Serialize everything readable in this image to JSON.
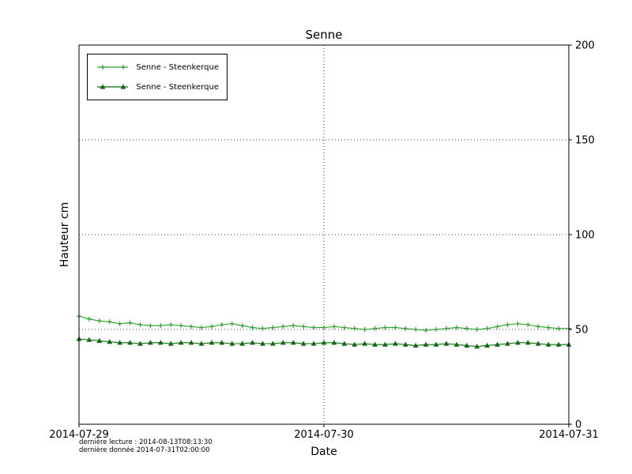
{
  "chart_data": {
    "type": "line",
    "title": "Senne",
    "xlabel": "Date",
    "ylabel": "Hauteur cm",
    "ylim": [
      0,
      200
    ],
    "yticks": [
      0,
      50,
      100,
      150,
      200
    ],
    "xlim": [
      0,
      48
    ],
    "xticks": [
      {
        "pos": 0,
        "label": "2014-07-29"
      },
      {
        "pos": 24,
        "label": "2014-07-30"
      },
      {
        "pos": 48,
        "label": "2014-07-31"
      }
    ],
    "grid": {
      "x": [
        24
      ],
      "y": [
        50,
        100,
        150
      ]
    },
    "legend_position": "upper-left",
    "series": [
      {
        "name": "Senne - Steenkerque",
        "marker": "plus",
        "color": "#2ca02c",
        "x": [
          0,
          1,
          2,
          3,
          4,
          5,
          6,
          7,
          8,
          9,
          10,
          11,
          12,
          13,
          14,
          15,
          16,
          17,
          18,
          19,
          20,
          21,
          22,
          23,
          24,
          25,
          26,
          27,
          28,
          29,
          30,
          31,
          32,
          33,
          34,
          35,
          36,
          37,
          38,
          39,
          40,
          41,
          42,
          43,
          44,
          45,
          46,
          47,
          48
        ],
        "values": [
          57,
          55.5,
          54.5,
          54,
          53,
          53.5,
          52.5,
          52,
          52,
          52.5,
          52,
          51.5,
          51,
          51.5,
          52.5,
          53,
          52,
          51,
          50.5,
          51,
          51.5,
          52,
          51.5,
          51,
          51,
          51.5,
          51,
          50.5,
          50,
          50.5,
          51,
          51,
          50.5,
          50,
          49.5,
          50,
          50.5,
          51,
          50.5,
          50,
          50.5,
          51.5,
          52.5,
          53,
          52.5,
          51.5,
          51,
          50.5,
          50.5
        ]
      },
      {
        "name": "Senne - Steenkerque",
        "marker": "triangle",
        "color": "#0e6b0e",
        "x": [
          0,
          1,
          2,
          3,
          4,
          5,
          6,
          7,
          8,
          9,
          10,
          11,
          12,
          13,
          14,
          15,
          16,
          17,
          18,
          19,
          20,
          21,
          22,
          23,
          24,
          25,
          26,
          27,
          28,
          29,
          30,
          31,
          32,
          33,
          34,
          35,
          36,
          37,
          38,
          39,
          40,
          41,
          42,
          43,
          44,
          45,
          46,
          47,
          48
        ],
        "values": [
          45,
          44.5,
          44,
          43.5,
          43,
          43,
          42.5,
          43,
          43,
          42.5,
          43,
          43,
          42.5,
          43,
          43,
          42.5,
          42.5,
          43,
          42.5,
          42.5,
          43,
          43,
          42.5,
          42.5,
          43,
          43,
          42.5,
          42,
          42.5,
          42,
          42,
          42.5,
          42,
          41.5,
          42,
          42,
          42.5,
          42,
          41.5,
          41,
          41.5,
          42,
          42.5,
          43,
          43,
          42.5,
          42,
          42,
          42
        ]
      }
    ]
  },
  "footer": {
    "line1": "dernière lecture : 2014-08-13T08:13:30",
    "line2": "dernière donnée  2014-07-31T02:00:00"
  }
}
